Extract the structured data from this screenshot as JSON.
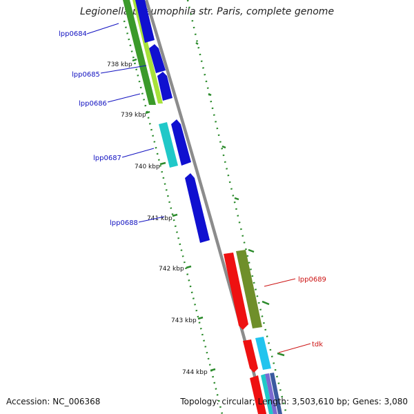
{
  "title": "Legionella pneumophila str. Paris, complete genome",
  "footer": {
    "accession": "Accession: NC_006368",
    "summary": "Topology: circular; Length: 3,503,610 bp; Genes: 3,080"
  },
  "colors": {
    "backbone": "#8c8c8c",
    "cds_forward": "#1010d0",
    "cds_cyan": "#20c8c8",
    "cds_red": "#ee1111",
    "cds_olive": "#6f8f2a",
    "cds_green": "#3b9a2a",
    "cds_lightgreen": "#a8e23a",
    "cds_skyblue": "#22c4ee",
    "gc_skew": "#2a8a2a",
    "label_blue": "#1010c0",
    "label_red": "#cc1111"
  },
  "ticks": [
    "738 kbp",
    "739 kbp",
    "740 kbp",
    "741 kbp",
    "742 kbp",
    "743 kbp",
    "744 kbp"
  ],
  "genes": [
    {
      "label": "lpp0684",
      "strand": "forward",
      "color_key": "label_blue"
    },
    {
      "label": "lpp0685",
      "strand": "forward",
      "color_key": "label_blue"
    },
    {
      "label": "lpp0686",
      "strand": "forward",
      "color_key": "label_blue"
    },
    {
      "label": "lpp0687",
      "strand": "forward",
      "color_key": "label_blue"
    },
    {
      "label": "lpp0688",
      "strand": "forward",
      "color_key": "label_blue"
    },
    {
      "label": "lpp0689",
      "strand": "reverse",
      "color_key": "label_red"
    },
    {
      "label": "tdk",
      "strand": "reverse",
      "color_key": "label_red"
    }
  ]
}
